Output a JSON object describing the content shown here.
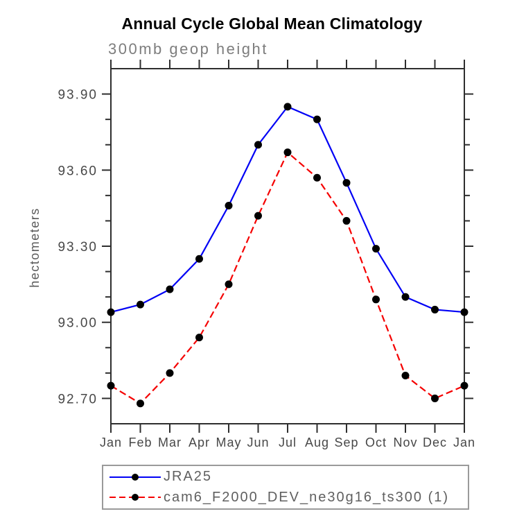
{
  "title": "Annual Cycle Global Mean Climatology",
  "subtitle": "300mb geop height",
  "chart_data": {
    "type": "line",
    "title": "Annual Cycle Global Mean Climatology",
    "subtitle": "300mb geop height",
    "xlabel": "",
    "ylabel": "hectometers",
    "categories": [
      "Jan",
      "Feb",
      "Mar",
      "Apr",
      "May",
      "Jun",
      "Jul",
      "Aug",
      "Sep",
      "Oct",
      "Nov",
      "Dec",
      "Jan"
    ],
    "series": [
      {
        "name": "JRA25",
        "color": "#0000f5",
        "line_style": "solid",
        "marker": "circle",
        "marker_color": "#000000",
        "values": [
          93.04,
          93.07,
          93.13,
          93.25,
          93.46,
          93.7,
          93.85,
          93.8,
          93.55,
          93.29,
          93.1,
          93.05,
          93.04
        ]
      },
      {
        "name": "cam6_F2000_DEV_ne30g16_ts300 (1)",
        "color": "#f50000",
        "line_style": "dashed",
        "marker": "circle",
        "marker_color": "#000000",
        "values": [
          92.75,
          92.68,
          92.8,
          92.94,
          93.15,
          93.42,
          93.67,
          93.57,
          93.4,
          93.09,
          92.79,
          92.7,
          92.75
        ]
      }
    ],
    "ylim": [
      92.6,
      94.0
    ],
    "y_major_ticks": [
      92.7,
      93.0,
      93.3,
      93.6,
      93.9
    ],
    "y_major_tick_labels": [
      "92.70",
      "93.00",
      "93.30",
      "93.60",
      "93.90"
    ],
    "y_minor_step": 0.1,
    "grid": false,
    "legend_position": "bottom"
  },
  "colors": {
    "frame": "#2e2e2e",
    "tick": "#2e2e2e",
    "tick_label": "#474747",
    "subtitle_text": "#7d7d7d",
    "legend_border": "#9a9a9a",
    "legend_text": "#5f5f5f",
    "background": "#ffffff"
  }
}
